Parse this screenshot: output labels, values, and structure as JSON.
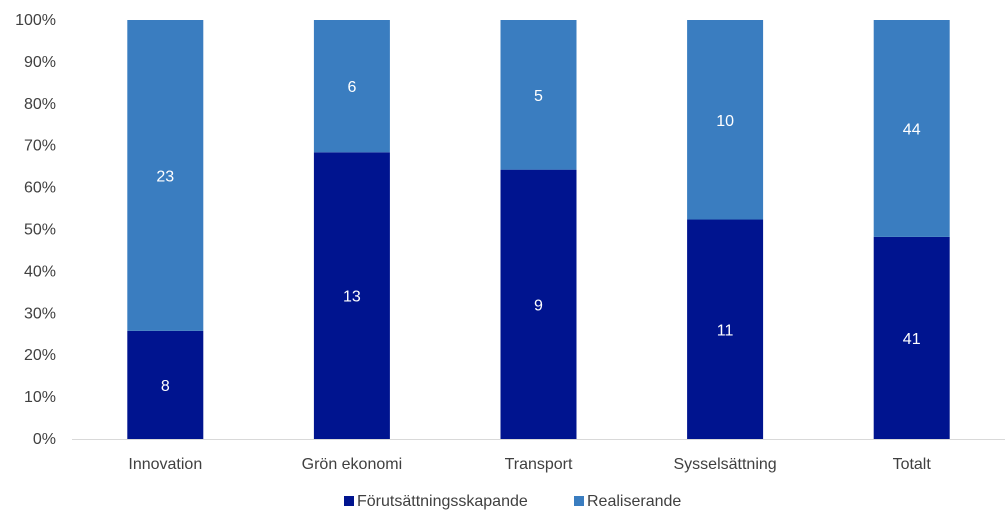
{
  "chart_data": {
    "type": "bar",
    "stacked": "percent",
    "categories": [
      "Innovation",
      "Grön ekonomi",
      "Transport",
      "Sysselsättning",
      "Totalt"
    ],
    "series": [
      {
        "name": "Förutsättningsskapande",
        "values": [
          8,
          13,
          9,
          11,
          41
        ],
        "color": "#00148f"
      },
      {
        "name": "Realiserande",
        "values": [
          23,
          6,
          5,
          10,
          44
        ],
        "color": "#3a7dc0"
      }
    ],
    "yticks": [
      "0%",
      "10%",
      "20%",
      "30%",
      "40%",
      "50%",
      "60%",
      "70%",
      "80%",
      "90%",
      "100%"
    ],
    "ylim": [
      0,
      100
    ],
    "grid": false,
    "legend_position": "bottom"
  }
}
